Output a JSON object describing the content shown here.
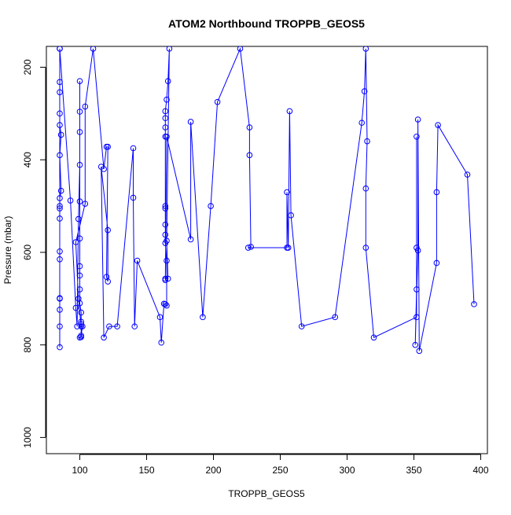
{
  "chart_data": {
    "type": "line",
    "title": "ATOM2 Northbound TROPPB_GEOS5",
    "xlabel": "TROPPB_GEOS5",
    "ylabel": "Pressure (mbar)",
    "xlim": [
      75,
      405
    ],
    "ylim": [
      1035,
      155
    ],
    "y_reversed": true,
    "x_ticks": [
      100,
      150,
      200,
      250,
      300,
      350,
      400
    ],
    "x_tick_labels": [
      "100",
      "150",
      "200",
      "250",
      "300",
      "350",
      "400"
    ],
    "y_ticks": [
      200,
      400,
      600,
      800,
      1000
    ],
    "y_tick_labels": [
      "200",
      "400",
      "600",
      "800",
      "1000"
    ],
    "grid": false,
    "legend": "none",
    "series_color": "#0000ff",
    "markers": "open-circle",
    "series": [
      {
        "x": [
          85,
          85,
          85,
          85,
          86,
          85,
          86,
          85,
          85,
          85,
          85,
          85,
          85,
          85,
          85,
          85,
          85,
          85,
          85,
          85,
          93,
          97,
          98,
          99,
          100,
          100,
          100,
          100,
          100,
          100,
          100,
          100,
          100,
          100,
          101,
          101,
          101,
          102,
          101,
          100,
          101,
          101,
          99,
          97,
          104,
          104,
          110,
          118,
          120,
          121,
          120,
          121,
          121,
          116,
          118,
          122,
          128,
          140,
          140,
          141,
          143,
          160,
          161,
          163,
          164,
          165,
          165,
          164,
          164,
          164,
          164,
          164,
          164,
          164,
          164,
          164,
          165,
          166,
          167,
          165,
          166,
          164,
          164,
          165,
          183,
          183,
          192,
          198,
          203,
          220,
          227,
          227,
          228,
          226,
          255,
          255,
          256,
          257,
          258,
          266,
          291,
          311,
          313,
          314,
          315,
          314,
          314,
          320,
          352,
          352,
          352,
          352,
          351,
          353,
          353,
          354,
          367,
          367,
          368,
          390,
          395
        ],
        "y": [
          160,
          232,
          254,
          325,
          346,
          390,
          467,
          483,
          505,
          527,
          598,
          615,
          699,
          724,
          805,
          760,
          700,
          500,
          300,
          160,
          488,
          720,
          760,
          528,
          411,
          296,
          230,
          340,
          490,
          570,
          630,
          650,
          680,
          710,
          730,
          750,
          755,
          760,
          780,
          784,
          783,
          760,
          700,
          578,
          495,
          285,
          160,
          420,
          372,
          372,
          653,
          663,
          552,
          415,
          784,
          760,
          760,
          375,
          482,
          760,
          618,
          740,
          795,
          711,
          712,
          715,
          618,
          580,
          562,
          540,
          505,
          500,
          350,
          330,
          310,
          295,
          270,
          230,
          160,
          575,
          657,
          657,
          660,
          350,
          572,
          318,
          740,
          500,
          275,
          160,
          330,
          390,
          588,
          590,
          590,
          470,
          590,
          295,
          520,
          760,
          740,
          320,
          252,
          160,
          360,
          462,
          590,
          784,
          740,
          350,
          590,
          680,
          800,
          596,
          313,
          813,
          623,
          470,
          325,
          432,
          712
        ]
      }
    ],
    "segments_note": ""
  }
}
